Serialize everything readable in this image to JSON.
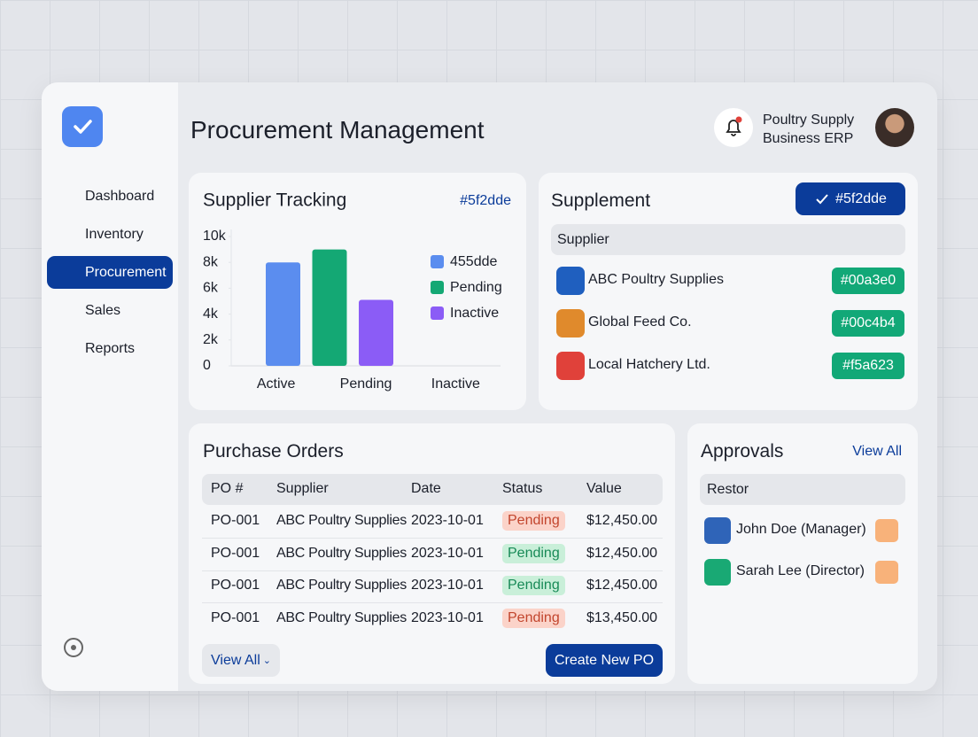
{
  "header": {
    "title": "Procurement Management",
    "org": [
      "Poultry Supply",
      "Business ERP"
    ]
  },
  "sidebar": {
    "items": [
      "Dashboard",
      "Inventory",
      "Procurement",
      "Sales",
      "Reports"
    ],
    "active": 2
  },
  "chart_data": {
    "type": "bar",
    "title": "Supplier Tracking",
    "annotation": "#5f2dde",
    "categories": [
      "Active",
      "Pending",
      "Inactive"
    ],
    "values": [
      8000,
      9000,
      5100
    ],
    "colors": [
      "#5b8def",
      "#14a874",
      "#8b5cf6"
    ],
    "legend": [
      "455dde",
      "Pending",
      "Inactive"
    ],
    "ylim": [
      0,
      10000
    ],
    "yticks": [
      0,
      {
        "value": 2000,
        "label": "2k"
      },
      {
        "value": 4000,
        "label": "4k"
      },
      {
        "value": 6000,
        "label": "6k"
      },
      {
        "value": 8000,
        "label": "8k"
      },
      {
        "value": 10000,
        "label": "10k"
      }
    ],
    "grid": false
  },
  "supplement": {
    "title": "Supplement",
    "button": "#5f2dde",
    "header": "Supplier",
    "rows": [
      {
        "name": "ABC Poultry Supplies",
        "tag": "#00a3e0",
        "icon_color": "#1f5fbf"
      },
      {
        "name": "Global Feed Co.",
        "tag": "#00c4b4",
        "icon_color": "#e08a2c"
      },
      {
        "name": "Local Hatchery Ltd.",
        "tag": "#f5a623",
        "icon_color": "#e0413a"
      }
    ]
  },
  "purchase_orders": {
    "title": "Purchase Orders",
    "columns": [
      "PO #",
      "Supplier",
      "Date",
      "Status",
      "Value"
    ],
    "rows": [
      [
        "PO-001",
        "ABC Poultry Supplies",
        "2023-10-01",
        "Pending",
        "$12,450.00"
      ],
      [
        "PO-001",
        "ABC Poultry Supplies",
        "2023-10-01",
        "Pending",
        "$12,450.00"
      ],
      [
        "PO-001",
        "ABC Poultry Supplies",
        "2023-10-01",
        "Pending",
        "$12,450.00"
      ],
      [
        "PO-001",
        "ABC Poultry Supplies",
        "2023-10-01",
        "Pending",
        "$13,450.00"
      ]
    ],
    "status_colors": [
      "#fbd3c9",
      "#c9efd9",
      "#c9efd9",
      "#fbd3c9"
    ],
    "view_all": "View All",
    "create": "Create New PO"
  },
  "approvals": {
    "title": "Approvals",
    "link": "View All",
    "header": "Restor",
    "rows": [
      {
        "name": "John Doe (Manager)",
        "icon_color": "#2f64b8"
      },
      {
        "name": "Sarah Lee (Director)",
        "icon_color": "#19a974"
      }
    ]
  }
}
